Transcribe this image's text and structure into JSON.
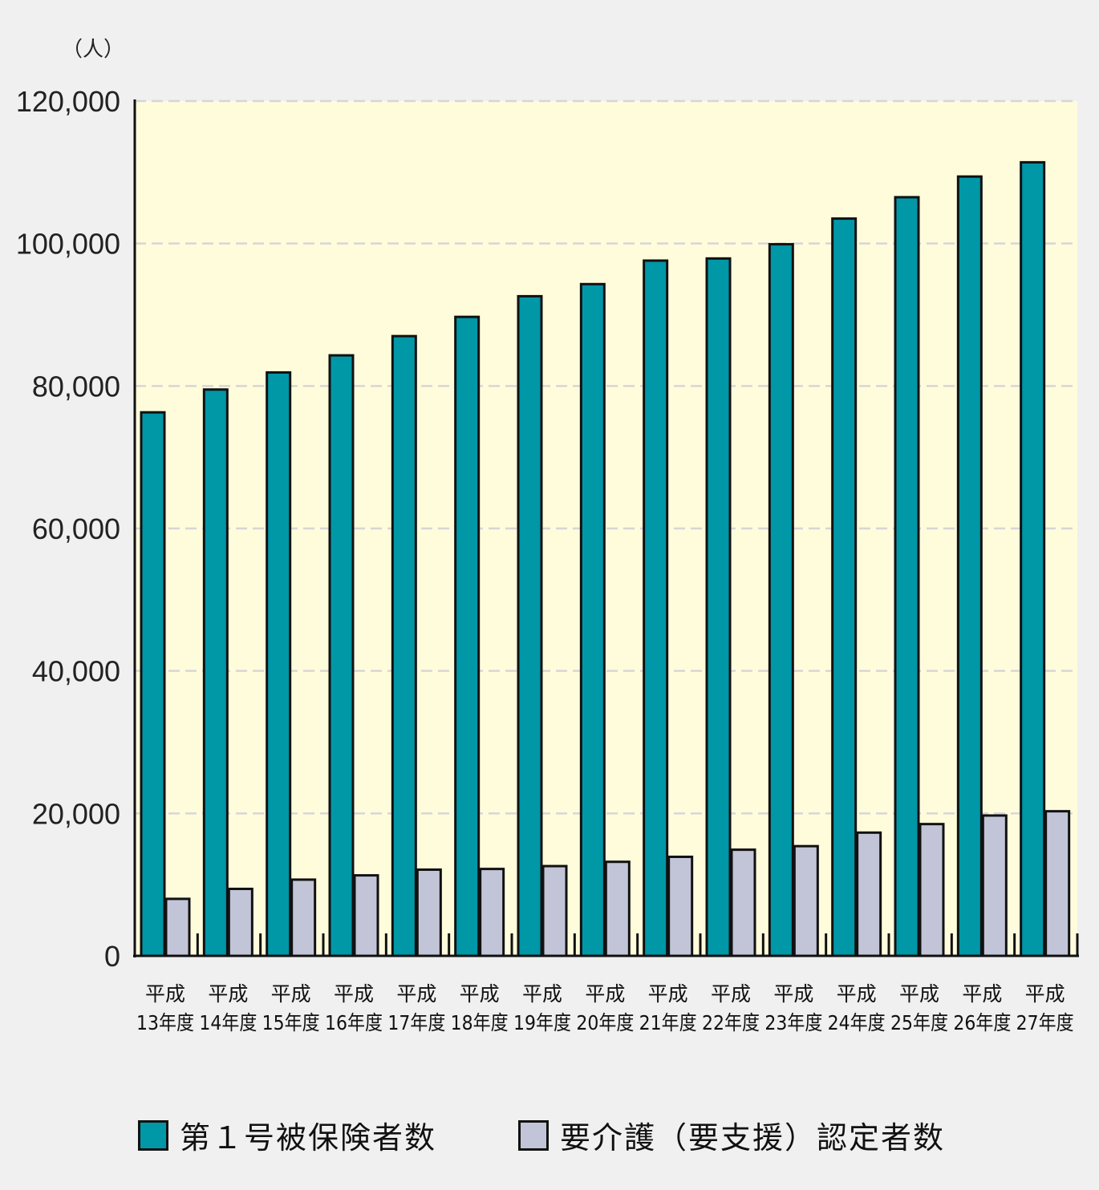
{
  "chart_data": {
    "type": "bar",
    "ylabel": "（人）",
    "ylim": [
      0,
      120000
    ],
    "yticks": [
      0,
      20000,
      40000,
      60000,
      80000,
      100000,
      120000
    ],
    "ytick_labels": [
      "0",
      "20,000",
      "40,000",
      "60,000",
      "80,000",
      "100,000",
      "120,000"
    ],
    "grid": true,
    "legend_position": "bottom",
    "categories": [
      [
        "平成",
        "13年度"
      ],
      [
        "平成",
        "14年度"
      ],
      [
        "平成",
        "15年度"
      ],
      [
        "平成",
        "16年度"
      ],
      [
        "平成",
        "17年度"
      ],
      [
        "平成",
        "18年度"
      ],
      [
        "平成",
        "19年度"
      ],
      [
        "平成",
        "20年度"
      ],
      [
        "平成",
        "21年度"
      ],
      [
        "平成",
        "22年度"
      ],
      [
        "平成",
        "23年度"
      ],
      [
        "平成",
        "24年度"
      ],
      [
        "平成",
        "25年度"
      ],
      [
        "平成",
        "26年度"
      ],
      [
        "平成",
        "27年度"
      ]
    ],
    "series": [
      {
        "name": "第１号被保険者数",
        "color": "#0097a7",
        "values": [
          76300,
          79500,
          81900,
          84300,
          87000,
          89700,
          92600,
          94300,
          97600,
          97900,
          99900,
          103500,
          106500,
          109400,
          111400
        ]
      },
      {
        "name": "要介護（要支援）認定者数",
        "color": "#c2c5d8",
        "values": [
          8000,
          9400,
          10700,
          11300,
          12100,
          12200,
          12600,
          13200,
          13900,
          14900,
          15400,
          17300,
          18500,
          19700,
          20300
        ]
      }
    ],
    "colors": {
      "plot_bg": "#fffcdc",
      "grid": "#d6d6d6",
      "outline": "#111111"
    }
  }
}
